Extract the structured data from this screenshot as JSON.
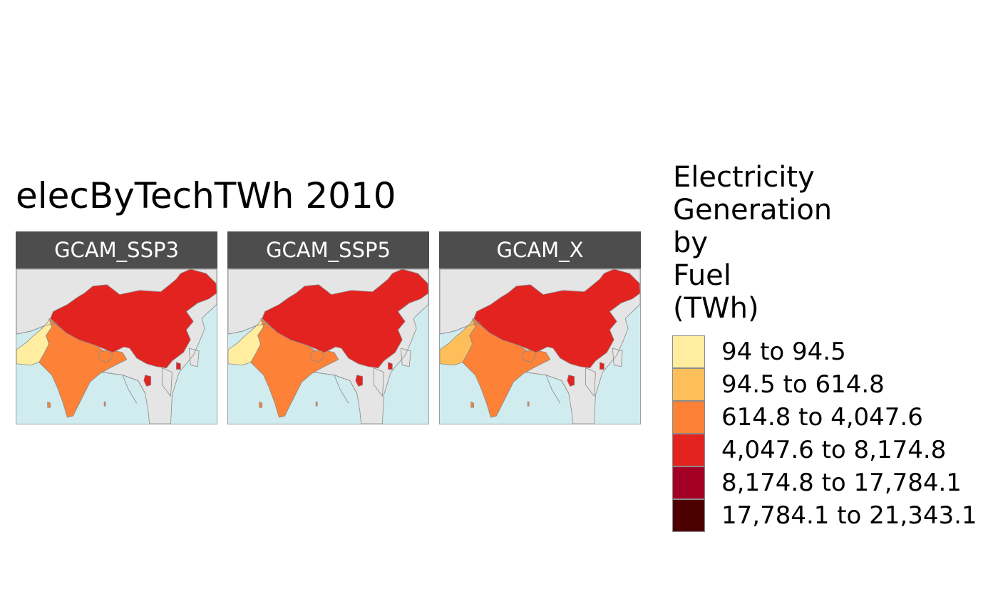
{
  "title": "elecByTechTWh 2010",
  "legend": {
    "title_lines": [
      "Electricity",
      "Generation",
      "by",
      "Fuel",
      "(TWh)"
    ],
    "items": [
      {
        "label": "94 to 94.5",
        "color": "#ffeda0"
      },
      {
        "label": "94.5 to 614.8",
        "color": "#febf5a"
      },
      {
        "label": "614.8 to 4,047.6",
        "color": "#fd8137"
      },
      {
        "label": "4,047.6 to 8,174.8",
        "color": "#e3231f"
      },
      {
        "label": "8,174.8 to 17,784.1",
        "color": "#a40026"
      },
      {
        "label": "17,784.1 to 21,343.1",
        "color": "#4d0000"
      }
    ]
  },
  "colors": {
    "ocean": "#d0ecee",
    "no_data_land": "#e5e5e5",
    "border": "#8a8a8a",
    "strip": "#4d4d4d"
  },
  "panels": [
    {
      "label": "GCAM_SSP3",
      "china": "#e3231f",
      "india": "#fd8137",
      "pakistan": "#ffeda0",
      "bangladesh": "#fd8137"
    },
    {
      "label": "GCAM_SSP5",
      "china": "#e3231f",
      "india": "#fd8137",
      "pakistan": "#ffeda0",
      "bangladesh": "#fd8137"
    },
    {
      "label": "GCAM_X",
      "china": "#e3231f",
      "india": "#fd8137",
      "pakistan": "#febf5a",
      "bangladesh": "#fd8137"
    }
  ]
}
